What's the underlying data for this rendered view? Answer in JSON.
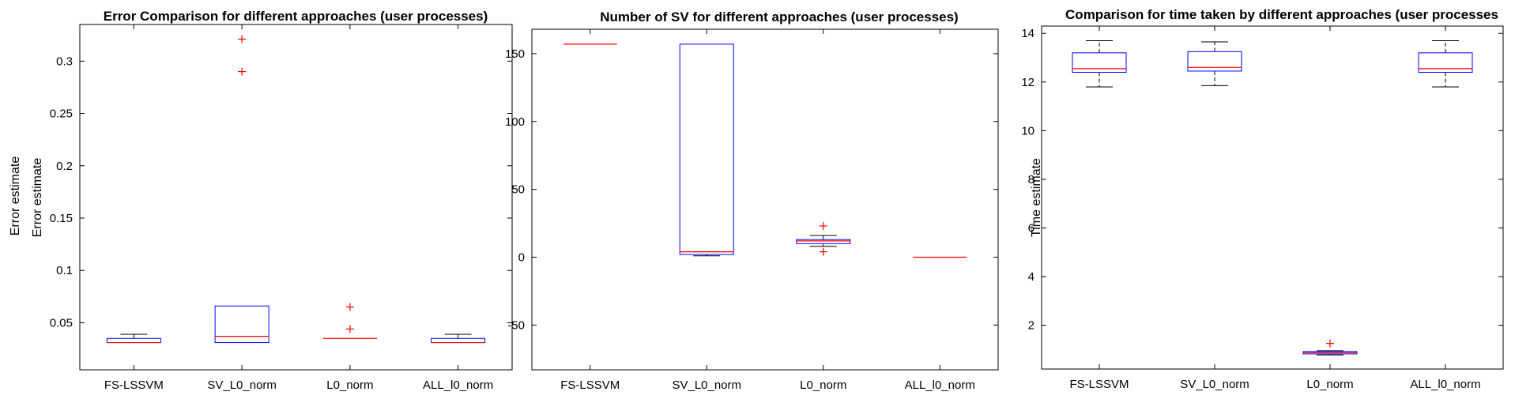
{
  "colors": {
    "box": "#0000ff",
    "median": "#ff0000",
    "whisker": "#000000",
    "outlier": "#ff0000",
    "axis": "#000000"
  },
  "chart_data": [
    {
      "type": "boxplot",
      "title": "Error Comparison for different approaches (user processes)",
      "ylabel": "Error estimate",
      "ylabel_overlap": "Error estimate",
      "ylim": [
        0.005,
        0.335
      ],
      "yticks": [
        0.05,
        0.1,
        0.15,
        0.2,
        0.25,
        0.3
      ],
      "ytick_labels": [
        "0.05",
        "0.1",
        "0.15",
        "0.2",
        "0.25",
        "0.3"
      ],
      "categories": [
        "FS-LSSVM",
        "SV_L0_norm",
        "L0_norm",
        "ALL_l0_norm"
      ],
      "boxes": [
        {
          "q1": 0.031,
          "median": 0.031,
          "q3": 0.035,
          "whisker_low": 0.031,
          "whisker_high": 0.039,
          "outliers": []
        },
        {
          "q1": 0.031,
          "median": 0.037,
          "q3": 0.066,
          "whisker_low": 0.031,
          "whisker_high": 0.066,
          "outliers": [
            0.29,
            0.321
          ]
        },
        {
          "q1": 0.035,
          "median": 0.035,
          "q3": 0.035,
          "whisker_low": 0.035,
          "whisker_high": 0.035,
          "outliers": [
            0.044,
            0.065
          ]
        },
        {
          "q1": 0.031,
          "median": 0.031,
          "q3": 0.035,
          "whisker_low": 0.031,
          "whisker_high": 0.039,
          "outliers": []
        }
      ]
    },
    {
      "type": "boxplot",
      "title": "Number of SV for different approaches (user processes)",
      "ylabel": "",
      "ylim": [
        -83,
        168
      ],
      "yticks": [
        -50,
        0,
        50,
        100,
        150
      ],
      "ytick_labels": [
        "-50",
        "0",
        "50",
        "100",
        "150"
      ],
      "categories": [
        "FS-LSSVM",
        "SV_L0_norm",
        "L0_norm",
        "ALL_l0_norm"
      ],
      "boxes": [
        {
          "q1": 157,
          "median": 157,
          "q3": 157,
          "whisker_low": 157,
          "whisker_high": 157,
          "outliers": []
        },
        {
          "q1": 2,
          "median": 4,
          "q3": 157,
          "whisker_low": 1,
          "whisker_high": 157,
          "outliers": []
        },
        {
          "q1": 10,
          "median": 12,
          "q3": 13,
          "whisker_low": 8,
          "whisker_high": 16,
          "outliers": [
            4,
            23
          ]
        },
        {
          "q1": 0,
          "median": 0,
          "q3": 0,
          "whisker_low": 0,
          "whisker_high": 0,
          "outliers": []
        }
      ]
    },
    {
      "type": "boxplot",
      "title": "Comparison for time taken by different approaches (user processes",
      "ylabel": "Time estimate",
      "ylim": [
        0.2,
        14.3
      ],
      "yticks": [
        2,
        4,
        6,
        8,
        10,
        12,
        14
      ],
      "ytick_labels": [
        "2",
        "4",
        "6",
        "8",
        "10",
        "12",
        "14"
      ],
      "categories": [
        "FS-LSSVM",
        "SV_L0_norm",
        "L0_norm",
        "ALL_l0_norm"
      ],
      "boxes": [
        {
          "q1": 12.4,
          "median": 12.55,
          "q3": 13.2,
          "whisker_low": 11.8,
          "whisker_high": 13.7,
          "outliers": []
        },
        {
          "q1": 12.45,
          "median": 12.6,
          "q3": 13.25,
          "whisker_low": 11.85,
          "whisker_high": 13.65,
          "outliers": []
        },
        {
          "q1": 0.82,
          "median": 0.87,
          "q3": 0.92,
          "whisker_low": 0.78,
          "whisker_high": 0.95,
          "outliers": [
            1.25
          ]
        },
        {
          "q1": 12.4,
          "median": 12.55,
          "q3": 13.2,
          "whisker_low": 11.8,
          "whisker_high": 13.7,
          "outliers": []
        }
      ]
    }
  ]
}
